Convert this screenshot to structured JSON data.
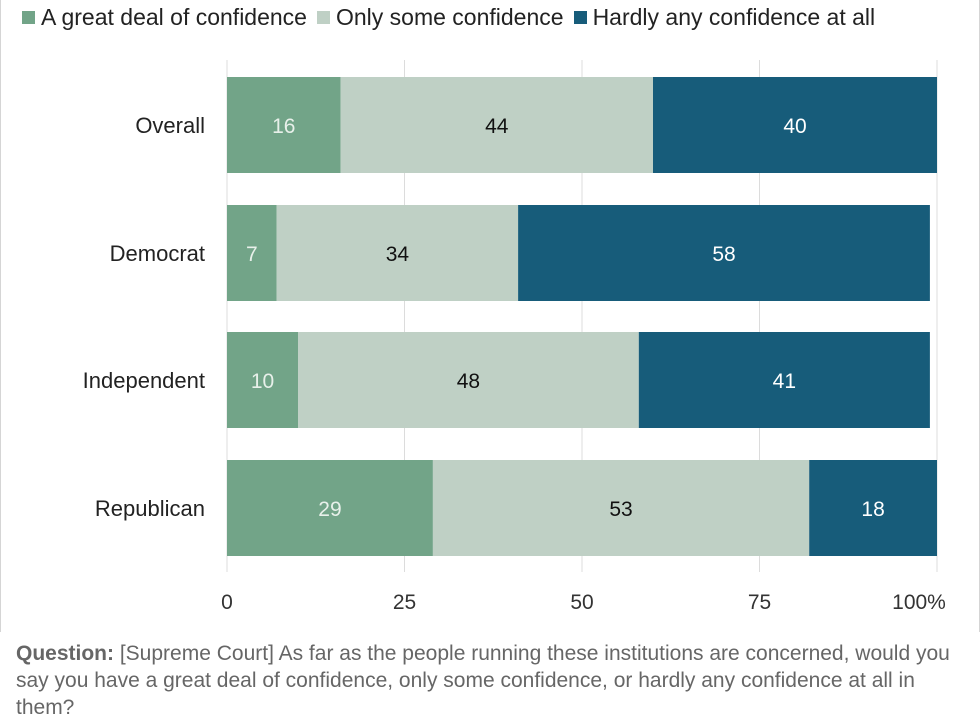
{
  "chart_data": {
    "type": "bar",
    "orientation": "horizontal",
    "stacked": true,
    "categories": [
      "Overall",
      "Democrat",
      "Independent",
      "Republican"
    ],
    "series": [
      {
        "name": "A great deal of confidence",
        "values": [
          16,
          7,
          10,
          29
        ],
        "color": "#72a488",
        "label_color": "#e8f0ea"
      },
      {
        "name": "Only some confidence",
        "values": [
          44,
          34,
          48,
          53
        ],
        "color": "#bfd0c5",
        "label_color": "#111111"
      },
      {
        "name": "Hardly any confidence at all",
        "values": [
          40,
          58,
          41,
          18
        ],
        "color": "#175c7a",
        "label_color": "#ffffff"
      }
    ],
    "xlim": [
      0,
      100
    ],
    "x_ticks": [
      0,
      25,
      50,
      75,
      100
    ],
    "x_tick_labels": [
      "0",
      "25",
      "50",
      "75",
      "100%"
    ],
    "grid": true,
    "legend_position": "top-left",
    "title": "",
    "xlabel": "",
    "ylabel": ""
  },
  "footnote": {
    "label": "Question:",
    "text": "[Supreme Court] As far as the people running these institutions are concerned, would you say you have a great deal of confidence, only some confidence, or hardly any confidence at all in them?"
  },
  "colors": {
    "grid": "#dcdcdc",
    "axis_text": "#333333"
  }
}
